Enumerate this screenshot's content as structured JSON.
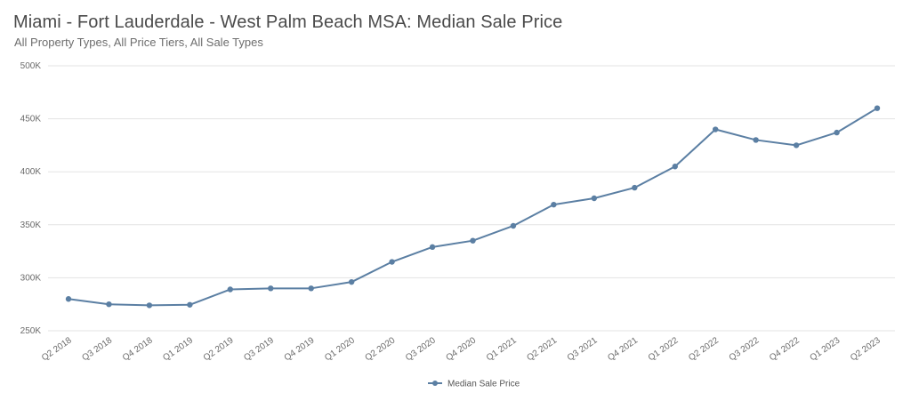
{
  "header": {
    "title": "Miami - Fort Lauderdale - West Palm Beach MSA: Median Sale Price",
    "subtitle": "All Property Types, All Price Tiers, All Sale Types"
  },
  "colors": {
    "series": "#5b7fa3",
    "grid": "#e3e3e3",
    "text": "#4a4a4a"
  },
  "chart_data": {
    "type": "line",
    "title": "Miami - Fort Lauderdale - West Palm Beach MSA: Median Sale Price",
    "subtitle": "All Property Types, All Price Tiers, All Sale Types",
    "categories": [
      "Q2 2018",
      "Q3 2018",
      "Q4 2018",
      "Q1 2019",
      "Q2 2019",
      "Q3 2019",
      "Q4 2019",
      "Q1 2020",
      "Q2 2020",
      "Q3 2020",
      "Q4 2020",
      "Q1 2021",
      "Q2 2021",
      "Q3 2021",
      "Q4 2021",
      "Q1 2022",
      "Q2 2022",
      "Q3 2022",
      "Q4 2022",
      "Q1 2023",
      "Q2 2023"
    ],
    "series": [
      {
        "name": "Median Sale Price",
        "values": [
          280000,
          275000,
          274000,
          274500,
          289000,
          290000,
          290000,
          296000,
          315000,
          329000,
          335000,
          349000,
          369000,
          375000,
          385000,
          405000,
          440000,
          430000,
          425000,
          437000,
          460000
        ]
      }
    ],
    "ylim": [
      250000,
      500000
    ],
    "yticks": [
      250000,
      300000,
      350000,
      400000,
      450000,
      500000
    ],
    "ytick_labels": [
      "250K",
      "300K",
      "350K",
      "400K",
      "450K",
      "500K"
    ],
    "grid": true,
    "legend": "bottom-center",
    "xlabel": "",
    "ylabel": ""
  }
}
